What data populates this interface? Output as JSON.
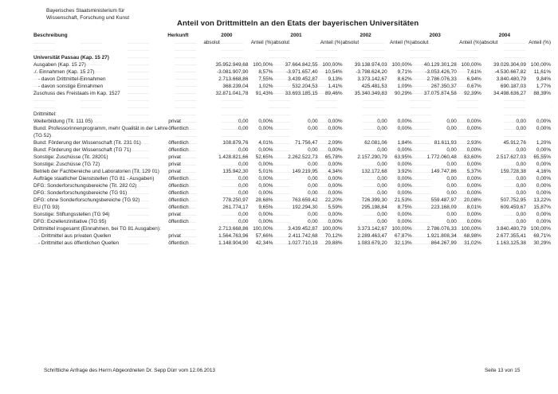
{
  "header": {
    "ministry_line1": "Bayerisches Staatsministerium für",
    "ministry_line2": "Wissenschaft, Forschung und Kunst",
    "title": "Anteil von Drittmitteln an den Etats der bayerischen Universitäten"
  },
  "table": {
    "col_beschreibung": "Beschreibung",
    "col_herkunft": "Herkunft",
    "years": [
      "2000",
      "2001",
      "2002",
      "2003",
      "2004"
    ],
    "sub_absolut": "absolut",
    "sub_anteil": "Anteil (%)",
    "rows": [
      {
        "label": "Universität Passau (Kap. 15 27)",
        "bold": true,
        "values": []
      },
      {
        "label": "Ausgaben (Kap. 15 27)",
        "values": [
          "35.952.949,68",
          "100,00%",
          "37.664.842,55",
          "100,00%",
          "39.138.974,03",
          "100,00%",
          "40.129.301,28",
          "100,00%",
          "39.029.304,09",
          "100,00%"
        ]
      },
      {
        "label": "./. Einnahmen (Kap. 15 27)",
        "values": [
          "-3.081.907,90",
          "8,57%",
          "-3.971.657,40",
          "10,54%",
          "-3.798.624,20",
          "9,71%",
          "-3.053.426,70",
          "7,61%",
          "-4.530.667,82",
          "11,61%"
        ]
      },
      {
        "label": "- davon Drittmittel-Einnahmen",
        "indent": true,
        "values": [
          "2.713.668,86",
          "7,55%",
          "3.439.452,87",
          "9,13%",
          "3.373.142,67",
          "8,62%",
          "2.786.076,33",
          "6,94%",
          "3.840.480,79",
          "9,84%"
        ]
      },
      {
        "label": "- davon sonstige Einnahmen",
        "indent": true,
        "values": [
          "368.239,04",
          "1,02%",
          "532.204,53",
          "1,41%",
          "425.481,53",
          "1,09%",
          "267.350,37",
          "0,67%",
          "690.187,03",
          "1,77%"
        ]
      },
      {
        "label": "Zuschuss des Freistaats im Kap. 1527",
        "values": [
          "32.871.041,78",
          "91,43%",
          "33.693.185,15",
          "89,46%",
          "35.340.349,83",
          "90,29%",
          "37.075.874,58",
          "92,39%",
          "34.498.636,27",
          "88,39%"
        ]
      },
      {
        "spacer": "lg"
      },
      {
        "label": "Drittmittel:",
        "values": []
      },
      {
        "label": "Weiterbildung (Tit. 111 05)",
        "herkunft": "privat",
        "values": [
          "0,00",
          "0,00%",
          "0,00",
          "0,00%",
          "0,00",
          "0,00%",
          "0,00",
          "0,00%",
          "0,00",
          "0,00%"
        ]
      },
      {
        "label": "Bund: Professorinnenprogramm, mehr Qualität in der Lehre",
        "herkunft": "öffentlich",
        "values": [
          "0,00",
          "0,00%",
          "0,00",
          "0,00%",
          "0,00",
          "0,00%",
          "0,00",
          "0,00%",
          "0,00",
          "0,00%"
        ]
      },
      {
        "label": "(TG 52)",
        "values": []
      },
      {
        "label": "Bund: Förderung der Wissenschaft (Tit. 231 01)",
        "herkunft": "öffentlich",
        "values": [
          "108.879,76",
          "4,01%",
          "71.756,47",
          "2,09%",
          "62.081,06",
          "1,84%",
          "81.611,93",
          "2,93%",
          "45.912,76",
          "1,20%"
        ]
      },
      {
        "label": "Bund: Förderung der Wissenschaft (TG 71)",
        "herkunft": "öffentlich",
        "values": [
          "0,00",
          "0,00%",
          "0,00",
          "0,00%",
          "0,00",
          "0,00%",
          "0,00",
          "0,00%",
          "0,00",
          "0,00%"
        ]
      },
      {
        "label": "Sonstige: Zuschüsse (Tit. 28201)",
        "herkunft": "privat",
        "values": [
          "1.428.821,66",
          "52,65%",
          "2.262.522,73",
          "65,78%",
          "2.157.290,79",
          "63,95%",
          "1.772.060,48",
          "63,60%",
          "2.517.627,03",
          "65,55%"
        ]
      },
      {
        "label": "Sonstige: Zuschüsse (TG 72)",
        "herkunft": "privat",
        "values": [
          "0,00",
          "0,00%",
          "0,00",
          "0,00%",
          "0,00",
          "0,00%",
          "0,00",
          "0,00%",
          "0,00",
          "0,00%"
        ]
      },
      {
        "label": "Betrieb der Fachbereiche und Laboratorien (Tit. 129 01)",
        "herkunft": "privat",
        "values": [
          "135.942,30",
          "5,01%",
          "149.219,95",
          "4,34%",
          "132.172,68",
          "3,92%",
          "149.747,86",
          "5,37%",
          "159.728,38",
          "4,16%"
        ]
      },
      {
        "label": "Aufträge staatlicher Dienststellen (TG 81 - Ausgaben)",
        "herkunft": "öffentlich",
        "values": [
          "0,00",
          "0,00%",
          "0,00",
          "0,00%",
          "0,00",
          "0,00%",
          "0,00",
          "0,00%",
          "0,00",
          "0,00%"
        ]
      },
      {
        "label": "DFG: Sonderforschungsbereiche (Tit. 282 02)",
        "herkunft": "öffentlich",
        "values": [
          "0,00",
          "0,00%",
          "0,00",
          "0,00%",
          "0,00",
          "0,00%",
          "0,00",
          "0,00%",
          "0,00",
          "0,00%"
        ]
      },
      {
        "label": "DFG: Sonderforschungsbereiche (TG 91)",
        "herkunft": "öffentlich",
        "values": [
          "0,00",
          "0,00%",
          "0,00",
          "0,00%",
          "0,00",
          "0,00%",
          "0,00",
          "0,00%",
          "0,00",
          "0,00%"
        ]
      },
      {
        "label": "DFG: ohne Sonderforschungsbereiche (TG 92)",
        "herkunft": "öffentlich",
        "values": [
          "778.250,97",
          "28,68%",
          "763.659,42",
          "22,20%",
          "726.399,30",
          "21,53%",
          "559.487,97",
          "20,08%",
          "507.752,95",
          "13,22%"
        ]
      },
      {
        "label": "EU (TG 93)",
        "herkunft": "öffentlich",
        "values": [
          "261.774,17",
          "9,65%",
          "192.294,30",
          "5,59%",
          "295.198,84",
          "8,75%",
          "223.168,09",
          "8,01%",
          "609.459,67",
          "15,87%"
        ]
      },
      {
        "label": "Sonstige: Stiftungsstellen (TG 94)",
        "herkunft": "privat",
        "values": [
          "0,00",
          "0,00%",
          "0,00",
          "0,00%",
          "0,00",
          "0,00%",
          "0,00",
          "0,00%",
          "0,00",
          "0,00%"
        ]
      },
      {
        "label": "DFG: Exzellenzinitiative (TG 95)",
        "herkunft": "öffentlich",
        "values": [
          "0,00",
          "0,00%",
          "0,00",
          "0,00%",
          "0,00",
          "0,00%",
          "0,00",
          "0,00%",
          "0,00",
          "0,00%"
        ]
      },
      {
        "label": "Drittmittel insgesamt (Einnahmen, bei TG 81 Ausgaben):",
        "values": [
          "2.713.668,86",
          "100,00%",
          "3.439.452,87",
          "100,00%",
          "3.373.142,67",
          "100,00%",
          "2.786.076,33",
          "100,00%",
          "3.840.480,79",
          "100,00%"
        ]
      },
      {
        "label": "- Drittmittel aus privaten Quellen",
        "indent": true,
        "herkunft": "privat",
        "values": [
          "1.564.763,96",
          "57,66%",
          "2.411.742,68",
          "70,12%",
          "2.289.463,47",
          "67,87%",
          "1.921.808,34",
          "68,98%",
          "2.677.355,41",
          "69,71%"
        ]
      },
      {
        "label": "- Drittmittel aus öffentlichen Quellen",
        "indent": true,
        "herkunft": "öffentlich",
        "values": [
          "1.148.904,90",
          "42,34%",
          "1.027.710,19",
          "29,88%",
          "1.083.679,20",
          "32,13%",
          "864.267,99",
          "31,02%",
          "1.163.125,38",
          "30,29%"
        ]
      }
    ]
  },
  "footer": {
    "left": "Schriftliche Anfrage des Herrn Abgeordneten Dr. Sepp Dürr vom 12.06.2013",
    "right": "Seite 13 von 15"
  }
}
